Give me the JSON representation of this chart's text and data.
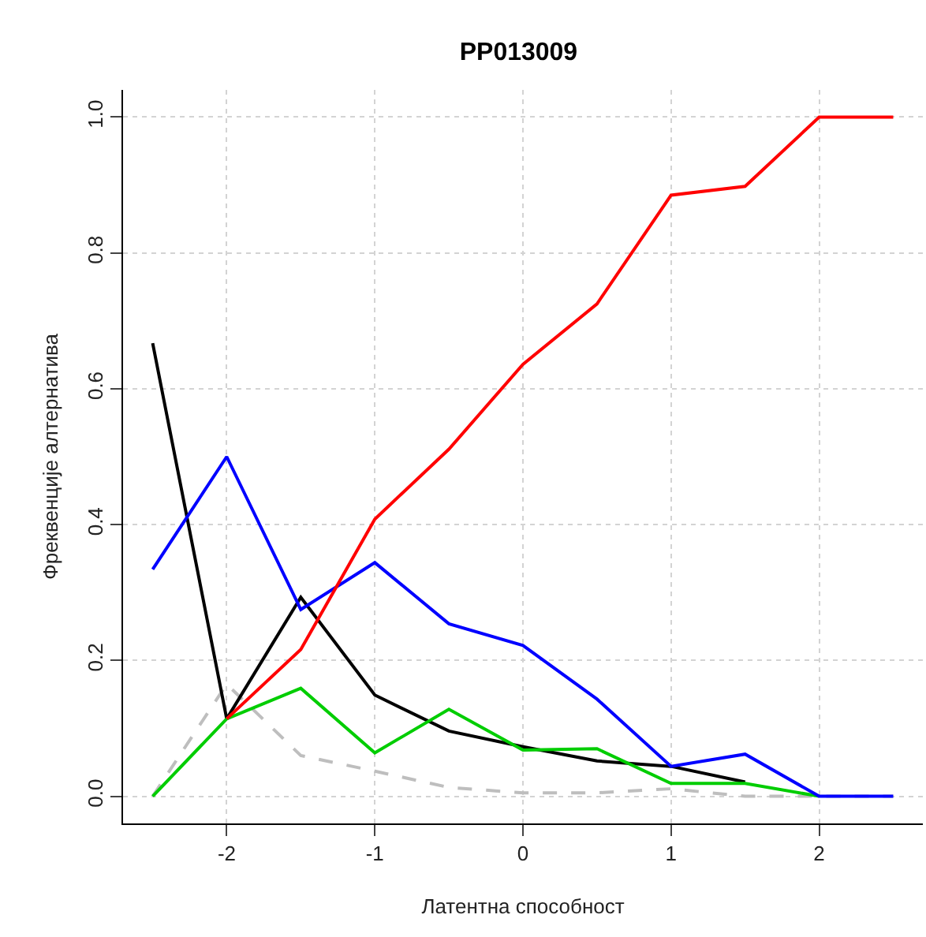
{
  "chart_data": {
    "type": "line",
    "title": "PP013009",
    "xlabel": "Латентна способност",
    "ylabel": "Фреквенције алтернатива",
    "x": [
      -2.5,
      -2,
      -1.5,
      -1,
      -0.5,
      0,
      0.5,
      1,
      1.5,
      2,
      2.5
    ],
    "series": [
      {
        "color": "#bebebe",
        "line_style": "dashed",
        "values": [
          0,
          0.165,
          0.06,
          0.037,
          0.013,
          0.005,
          0.005,
          0.011,
          0,
          0,
          0
        ]
      },
      {
        "color": "#000000",
        "values": [
          0.667,
          0.114,
          0.293,
          0.149,
          0.096,
          0.073,
          0.052,
          0.044,
          0.021,
          null,
          null
        ]
      },
      {
        "color": "#00cd00",
        "values": [
          0,
          0.114,
          0.159,
          0.064,
          0.128,
          0.068,
          0.07,
          0.019,
          0.019,
          0,
          null
        ]
      },
      {
        "color": "#0000ff",
        "values": [
          0.334,
          0.5,
          0.275,
          0.344,
          0.254,
          0.222,
          0.143,
          0.044,
          0.062,
          0,
          0
        ]
      },
      {
        "color": "#ff0000",
        "values": [
          null,
          0.114,
          0.216,
          0.408,
          0.511,
          0.636,
          0.725,
          0.885,
          0.898,
          1,
          1
        ]
      }
    ],
    "xlim": [
      -2.7,
      2.7
    ],
    "ylim": [
      -0.04,
      1.04
    ],
    "xticks": [
      -2,
      -1,
      0,
      1,
      2
    ],
    "yticks": [
      {
        "value": 0,
        "label": "0.0"
      },
      0.2,
      0.4,
      0.6,
      0.8,
      {
        "value": 1,
        "label": "1.0"
      }
    ],
    "grid": true,
    "line_style": "solid",
    "marker": "none"
  }
}
